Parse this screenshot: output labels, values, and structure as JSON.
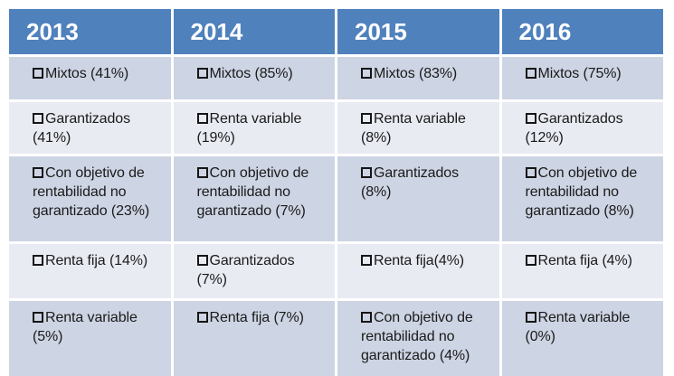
{
  "slide": {
    "table": {
      "bullet_icon": "hollow-square",
      "columns": [
        {
          "year": "2013",
          "items": [
            "Mixtos (41%)",
            "Garantizados\n(41%)",
            "Con objetivo de\nrentabilidad no\ngarantizado (23%)",
            "Renta fija (14%)",
            "Renta variable\n(5%)"
          ]
        },
        {
          "year": "2014",
          "items": [
            "Mixtos (85%)",
            "Renta variable\n(19%)",
            "Con objetivo de\nrentabilidad no\ngarantizado (7%)",
            "Garantizados\n(7%)",
            "Renta fija (7%)"
          ]
        },
        {
          "year": "2015",
          "items": [
            "Mixtos (83%)",
            "Renta variable\n(8%)",
            "Garantizados\n(8%)",
            "Renta fija(4%)",
            "Con objetivo de\nrentabilidad no\ngarantizado (4%)"
          ]
        },
        {
          "year": "2016",
          "items": [
            "Mixtos (75%)",
            "Garantizados\n(12%)",
            "Con objetivo de\nrentabilidad no\ngarantizado (8%)",
            "Renta fija (4%)",
            "Renta variable\n(0%)"
          ]
        }
      ]
    },
    "colors": {
      "background": "#FFFFFF",
      "header_bg": "#4F81BD",
      "header_text": "#FFFFFF",
      "band_dark": "#CDD4E3",
      "band_light": "#E9EBF3",
      "cell_text": "#1A1A1A"
    }
  }
}
